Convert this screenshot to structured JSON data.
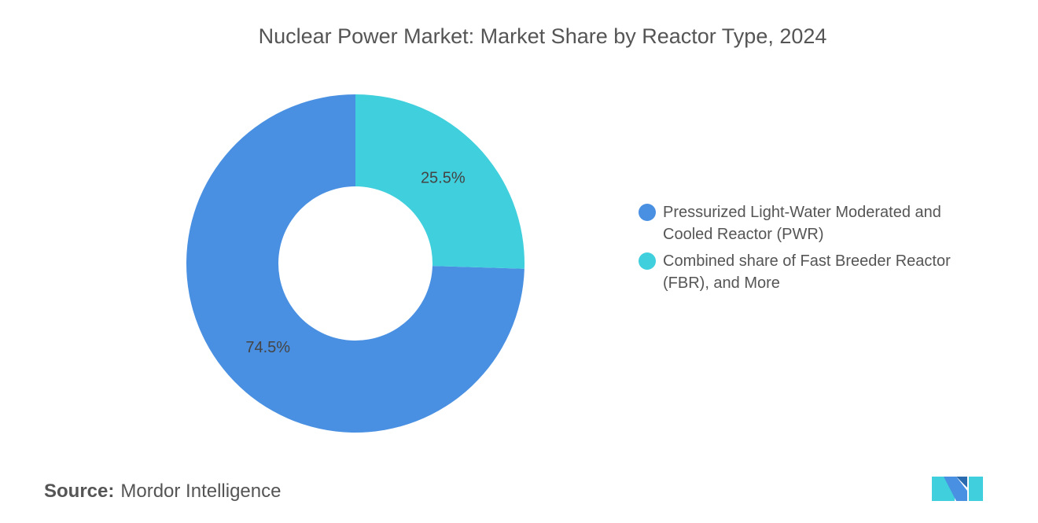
{
  "chart_data": {
    "type": "pie",
    "donut": true,
    "title": "Nuclear Power Market: Market Share by Reactor Type, 2024",
    "categories": [
      "Pressurized Light-Water Moderated and Cooled Reactor (PWR)",
      "Combined share of Fast Breeder Reactor (FBR), and More"
    ],
    "values": [
      74.5,
      25.5
    ],
    "value_labels": [
      "74.5%",
      "25.5%"
    ],
    "colors": [
      "#4a90e2",
      "#40cfdc"
    ],
    "legend": "right"
  },
  "source": {
    "label": "Source:",
    "text": "Mordor Intelligence"
  }
}
